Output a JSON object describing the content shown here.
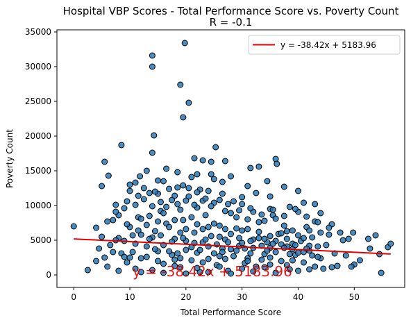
{
  "chart_data": {
    "type": "scatter",
    "title": "Hospital VBP Scores - Total Performance Score vs. Poverty Count",
    "subtitle": "R = -0.1",
    "xlabel": "Total Performance Score",
    "ylabel": "Poverty Count",
    "xlim": [
      -3,
      59
    ],
    "ylim": [
      -1800,
      35300
    ],
    "x_ticks": [
      0,
      10,
      20,
      30,
      40,
      50
    ],
    "y_ticks": [
      0,
      5000,
      10000,
      15000,
      20000,
      25000,
      30000,
      35000
    ],
    "grid": false,
    "legend_position": "top-right",
    "regression": {
      "label": "y = -38.42x + 5183.96",
      "slope": -38.42,
      "intercept": 5183.96,
      "x_range": [
        0,
        56.5
      ],
      "color": "#e00000"
    },
    "annotation": {
      "text": "y = -38.42x + 5183.96",
      "x": 10.5,
      "y": -200,
      "color": "#e00000"
    },
    "series": [
      {
        "marker_color": "#2878b5",
        "edge_color": "#000000",
        "points": [
          [
            14,
            31600
          ],
          [
            14,
            30000
          ],
          [
            19.8,
            33400
          ],
          [
            19,
            27400
          ],
          [
            20.5,
            24800
          ],
          [
            19.5,
            22700
          ],
          [
            14.3,
            20100
          ],
          [
            8.5,
            18700
          ],
          [
            25.3,
            18400
          ],
          [
            14,
            17600
          ],
          [
            5.5,
            16300
          ],
          [
            21.5,
            16800
          ],
          [
            23,
            16500
          ],
          [
            24.5,
            16300
          ],
          [
            27,
            16400
          ],
          [
            31.5,
            15400
          ],
          [
            36,
            16700
          ],
          [
            36.2,
            16000
          ],
          [
            6.2,
            14300
          ],
          [
            11.8,
            14200
          ],
          [
            13,
            15000
          ],
          [
            16.5,
            15300
          ],
          [
            18.5,
            14800
          ],
          [
            22,
            14500
          ],
          [
            28,
            14200
          ],
          [
            33,
            15600
          ],
          [
            24.5,
            14500
          ],
          [
            5,
            12800
          ],
          [
            10,
            13000
          ],
          [
            15,
            13600
          ],
          [
            26.5,
            13400
          ],
          [
            31,
            12800
          ],
          [
            34.5,
            13500
          ],
          [
            37.5,
            12700
          ],
          [
            40,
            12100
          ],
          [
            43,
            10200
          ],
          [
            35,
            9500
          ],
          [
            41,
            10400
          ],
          [
            38.5,
            9800
          ],
          [
            44,
            8900
          ],
          [
            46,
            7300
          ],
          [
            47.5,
            6100
          ],
          [
            49,
            5200
          ],
          [
            48,
            5000
          ],
          [
            49.8,
            6100
          ],
          [
            52.5,
            5200
          ],
          [
            52.8,
            3800
          ],
          [
            53.8,
            5700
          ],
          [
            54.5,
            3000
          ],
          [
            56,
            4000
          ],
          [
            56.5,
            4500
          ],
          [
            54.8,
            300
          ],
          [
            50,
            1500
          ],
          [
            51,
            2100
          ],
          [
            49.5,
            1200
          ],
          [
            47,
            1300
          ],
          [
            46,
            1100
          ],
          [
            44.5,
            900
          ],
          [
            44,
            2400
          ],
          [
            43,
            1200
          ],
          [
            0,
            7000
          ],
          [
            2.5,
            700
          ],
          [
            4,
            6800
          ],
          [
            4,
            2000
          ],
          [
            4.5,
            3800
          ],
          [
            5,
            5500
          ],
          [
            5.5,
            2500
          ],
          [
            6,
            1200
          ],
          [
            6.5,
            4300
          ],
          [
            7,
            7900
          ],
          [
            7.5,
            10100
          ],
          [
            8,
            600
          ],
          [
            8.5,
            3100
          ],
          [
            9,
            9600
          ],
          [
            9.5,
            1800
          ],
          [
            10,
            12100
          ],
          [
            10.5,
            5700
          ],
          [
            11,
            900
          ],
          [
            11.5,
            8300
          ],
          [
            12,
            2400
          ],
          [
            12.5,
            10900
          ],
          [
            13,
            4100
          ],
          [
            13.5,
            11800
          ],
          [
            14,
            700
          ],
          [
            14.5,
            6300
          ],
          [
            15,
            3400
          ],
          [
            15.5,
            9200
          ],
          [
            16,
            1600
          ],
          [
            16.5,
            7400
          ],
          [
            17,
            12400
          ],
          [
            17.5,
            2900
          ],
          [
            18,
            5200
          ],
          [
            18.5,
            10200
          ],
          [
            19,
            1100
          ],
          [
            19.5,
            7900
          ],
          [
            20,
            3600
          ],
          [
            20.5,
            11300
          ],
          [
            21,
            2100
          ],
          [
            21.5,
            6100
          ],
          [
            22,
            9700
          ],
          [
            22.5,
            400
          ],
          [
            23,
            4700
          ],
          [
            23.5,
            8600
          ],
          [
            24,
            2300
          ],
          [
            24.5,
            5600
          ],
          [
            25,
            10400
          ],
          [
            25.5,
            1400
          ],
          [
            26,
            7100
          ],
          [
            26.5,
            3800
          ],
          [
            27,
            9200
          ],
          [
            27.5,
            600
          ],
          [
            28,
            5900
          ],
          [
            28.5,
            2700
          ],
          [
            29,
            8300
          ],
          [
            29.5,
            4200
          ],
          [
            30,
            11200
          ],
          [
            30.5,
            1700
          ],
          [
            31,
            6600
          ],
          [
            31.5,
            3100
          ],
          [
            32,
            9100
          ],
          [
            32.5,
            1200
          ],
          [
            33,
            5300
          ],
          [
            33.5,
            2200
          ],
          [
            34,
            7800
          ],
          [
            34.5,
            4700
          ],
          [
            35,
            1500
          ],
          [
            35.5,
            8600
          ],
          [
            36,
            3300
          ],
          [
            36.5,
            5900
          ],
          [
            37,
            2000
          ],
          [
            37.5,
            7100
          ],
          [
            38,
            4100
          ],
          [
            38.5,
            800
          ],
          [
            39,
            6400
          ],
          [
            39.5,
            2900
          ],
          [
            40,
            9100
          ],
          [
            40.5,
            4900
          ],
          [
            41,
            1800
          ],
          [
            41.5,
            6900
          ],
          [
            42,
            3500
          ],
          [
            42.5,
            5400
          ],
          [
            43,
            7700
          ],
          [
            43.5,
            2600
          ],
          [
            44,
            6100
          ],
          [
            45,
            4300
          ],
          [
            45.5,
            5800
          ],
          [
            6,
            7700
          ],
          [
            7,
            3300
          ],
          [
            8,
            5300
          ],
          [
            9,
            2600
          ],
          [
            10,
            6900
          ],
          [
            11,
            4500
          ],
          [
            12,
            8100
          ],
          [
            13,
            2600
          ],
          [
            14,
            5400
          ],
          [
            15,
            7700
          ],
          [
            16,
            4300
          ],
          [
            17,
            6900
          ],
          [
            18,
            2200
          ],
          [
            19,
            6100
          ],
          [
            20,
            4900
          ],
          [
            21,
            8300
          ],
          [
            22,
            3200
          ],
          [
            23,
            6600
          ],
          [
            24,
            4100
          ],
          [
            25,
            7400
          ],
          [
            26,
            2700
          ],
          [
            27,
            5100
          ],
          [
            28,
            8900
          ],
          [
            29,
            3500
          ],
          [
            30,
            6400
          ],
          [
            31,
            2400
          ],
          [
            32,
            5100
          ],
          [
            33,
            7600
          ],
          [
            34,
            3000
          ],
          [
            35,
            5600
          ],
          [
            36,
            8100
          ],
          [
            37,
            4400
          ],
          [
            38,
            6300
          ],
          [
            39,
            3700
          ],
          [
            40,
            5700
          ],
          [
            41,
            3300
          ],
          [
            42,
            6400
          ],
          [
            8,
            8600
          ],
          [
            9,
            4900
          ],
          [
            10,
            2500
          ],
          [
            11,
            10100
          ],
          [
            12,
            5800
          ],
          [
            13,
            7200
          ],
          [
            14,
            9900
          ],
          [
            15,
            11700
          ],
          [
            16,
            8900
          ],
          [
            17,
            3400
          ],
          [
            18,
            7900
          ],
          [
            19,
            9400
          ],
          [
            20,
            6600
          ],
          [
            21,
            4000
          ],
          [
            22,
            7300
          ],
          [
            23,
            10700
          ],
          [
            24,
            6900
          ],
          [
            25,
            3100
          ],
          [
            26,
            5500
          ],
          [
            27,
            6600
          ],
          [
            28,
            3700
          ],
          [
            29,
            6700
          ],
          [
            30,
            4600
          ],
          [
            31,
            8000
          ],
          [
            32,
            3900
          ],
          [
            33,
            6200
          ],
          [
            34,
            5200
          ],
          [
            35,
            3900
          ],
          [
            36,
            4900
          ],
          [
            37,
            6000
          ],
          [
            38,
            5200
          ],
          [
            39,
            4500
          ],
          [
            40,
            3200
          ],
          [
            41,
            5300
          ],
          [
            42,
            4200
          ],
          [
            17.5,
            10800
          ],
          [
            18.5,
            12600
          ],
          [
            19.5,
            12900
          ],
          [
            20.5,
            12500
          ],
          [
            21.5,
            10100
          ],
          [
            22.5,
            12300
          ],
          [
            23.5,
            11000
          ],
          [
            26.5,
            11700
          ],
          [
            28.5,
            10600
          ],
          [
            13.5,
            8500
          ],
          [
            15.5,
            10500
          ],
          [
            16.5,
            9800
          ],
          [
            11.5,
            11400
          ],
          [
            9.5,
            10600
          ],
          [
            7.5,
            9100
          ],
          [
            24.5,
            9900
          ],
          [
            27.5,
            10200
          ],
          [
            29.5,
            9300
          ],
          [
            31.5,
            9600
          ],
          [
            33.5,
            8700
          ],
          [
            35.5,
            9400
          ],
          [
            37.5,
            8500
          ],
          [
            39.5,
            9500
          ],
          [
            41.5,
            8400
          ],
          [
            43.5,
            7600
          ],
          [
            45.5,
            6800
          ],
          [
            12,
            400
          ],
          [
            16,
            300
          ],
          [
            20,
            200
          ],
          [
            24,
            400
          ],
          [
            28,
            200
          ],
          [
            32,
            500
          ],
          [
            36,
            300
          ],
          [
            40,
            600
          ],
          [
            18,
            1300
          ],
          [
            22,
            1000
          ],
          [
            26,
            1200
          ],
          [
            30,
            900
          ],
          [
            34,
            1100
          ],
          [
            38,
            1400
          ],
          [
            42,
            800
          ],
          [
            15,
            2000
          ],
          [
            19,
            2400
          ],
          [
            23,
            1800
          ],
          [
            27,
            2300
          ],
          [
            31,
            2000
          ],
          [
            35,
            2500
          ],
          [
            39,
            2100
          ],
          [
            10.5,
            3300
          ],
          [
            14.5,
            3700
          ],
          [
            18.5,
            3100
          ],
          [
            22.5,
            3600
          ],
          [
            26.5,
            3300
          ],
          [
            30.5,
            3800
          ],
          [
            34.5,
            3500
          ],
          [
            38.5,
            3000
          ],
          [
            42.5,
            2800
          ],
          [
            46.5,
            3100
          ],
          [
            48.5,
            2800
          ],
          [
            7.5,
            5000
          ],
          [
            9.5,
            7300
          ],
          [
            11.5,
            6400
          ],
          [
            13.5,
            5200
          ],
          [
            15.5,
            5700
          ],
          [
            17.5,
            4800
          ],
          [
            19.5,
            5300
          ],
          [
            21.5,
            4600
          ],
          [
            23.5,
            5100
          ],
          [
            25.5,
            4400
          ],
          [
            27.5,
            4700
          ],
          [
            29.5,
            5300
          ],
          [
            31.5,
            4900
          ],
          [
            33.5,
            4200
          ],
          [
            35.5,
            4500
          ],
          [
            37.5,
            3900
          ],
          [
            39.5,
            4300
          ],
          [
            41.5,
            3800
          ],
          [
            43.5,
            4100
          ],
          [
            16,
            13500
          ],
          [
            18,
            11400
          ],
          [
            20,
            10700
          ],
          [
            22,
            11900
          ],
          [
            24,
            12100
          ],
          [
            26,
            10800
          ],
          [
            12.5,
            12500
          ],
          [
            11,
            13300
          ],
          [
            14.5,
            12000
          ],
          [
            32.5,
            11800
          ],
          [
            35,
            11300
          ],
          [
            30,
            10200
          ],
          [
            21,
            14100
          ],
          [
            25,
            13800
          ]
        ]
      }
    ]
  }
}
